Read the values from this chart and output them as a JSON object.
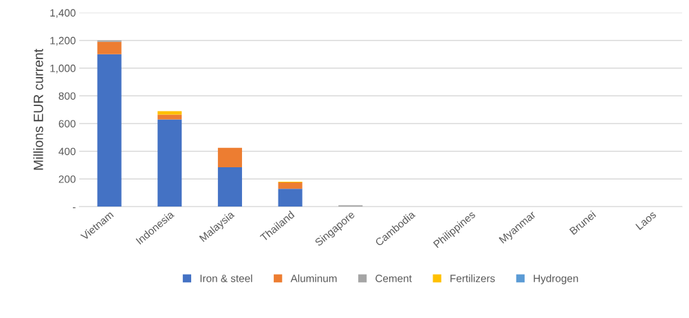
{
  "chart_data": {
    "type": "bar",
    "stacked": true,
    "ylabel": "Millions EUR current",
    "categories": [
      "Vietnam",
      "Indonesia",
      "Malaysia",
      "Thailand",
      "Singapore",
      "Cambodia",
      "Philippines",
      "Myanmar",
      "Brunei",
      "Laos"
    ],
    "series": [
      {
        "name": "Iron & steel",
        "color": "#4472c4",
        "values": [
          1100,
          630,
          285,
          130,
          0,
          0,
          0,
          0,
          0,
          0
        ]
      },
      {
        "name": "Aluminum",
        "color": "#ed7d31",
        "values": [
          90,
          35,
          140,
          45,
          0,
          0,
          0,
          0,
          0,
          0
        ]
      },
      {
        "name": "Cement",
        "color": "#a5a5a5",
        "values": [
          10,
          0,
          0,
          0,
          10,
          0,
          0,
          0,
          0,
          0
        ]
      },
      {
        "name": "Fertilizers",
        "color": "#ffc000",
        "values": [
          0,
          25,
          0,
          5,
          0,
          0,
          0,
          0,
          0,
          0
        ]
      },
      {
        "name": "Hydrogen",
        "color": "#5b9bd5",
        "values": [
          0,
          0,
          0,
          0,
          0,
          0,
          0,
          0,
          0,
          0
        ]
      }
    ],
    "ylim": [
      0,
      1400
    ],
    "yticks": [
      {
        "value": 0,
        "label": "-"
      },
      {
        "value": 200,
        "label": "200"
      },
      {
        "value": 400,
        "label": "400"
      },
      {
        "value": 600,
        "label": "600"
      },
      {
        "value": 800,
        "label": "800"
      },
      {
        "value": 1000,
        "label": "1,000"
      },
      {
        "value": 1200,
        "label": "1,200"
      },
      {
        "value": 1400,
        "label": "1,400"
      }
    ],
    "grid": "y",
    "legend": "bottom"
  }
}
